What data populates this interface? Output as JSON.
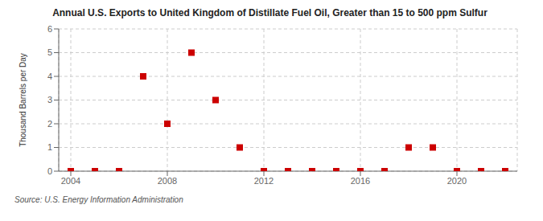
{
  "chart_data": {
    "type": "scatter",
    "title": "Annual U.S. Exports to United Kingdom of Distillate Fuel Oil, Greater than 15 to 500 ppm Sulfur",
    "y_label": "Thousand Barrels per Day",
    "source": "Source: U.S. Energy Information Administration",
    "x": [
      2004,
      2005,
      2006,
      2007,
      2008,
      2009,
      2010,
      2011,
      2012,
      2013,
      2014,
      2015,
      2016,
      2017,
      2018,
      2019,
      2020,
      2021,
      2022
    ],
    "values": [
      0,
      0,
      0,
      4,
      2,
      5,
      3,
      1,
      0,
      0,
      0,
      0,
      0,
      0,
      1,
      1,
      0,
      0,
      0
    ],
    "color": "#cc0000",
    "marker": "square",
    "xlim": [
      2003.5,
      2022.5
    ],
    "xticks": [
      2004,
      2008,
      2012,
      2016,
      2020
    ],
    "ylim": [
      0,
      6
    ],
    "yticks": [
      0,
      1,
      2,
      3,
      4,
      5,
      6
    ],
    "grid": true
  }
}
